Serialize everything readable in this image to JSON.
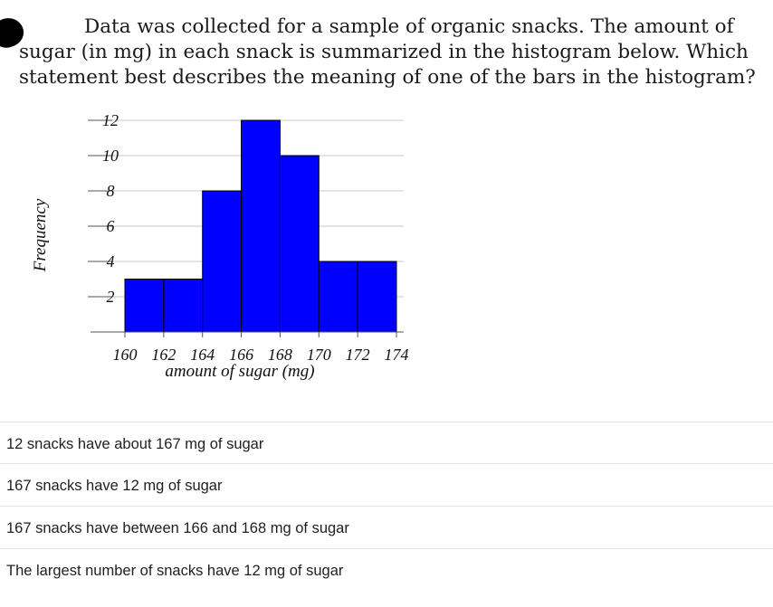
{
  "question": {
    "text": "Data was collected for a sample of organic snacks. The amount of sugar (in mg) in each snack is summarized in the histogram below. Which statement best describes the meaning of one of the bars in the histogram?"
  },
  "chart_data": {
    "type": "bar",
    "histogram": true,
    "bins": [
      [
        160,
        162
      ],
      [
        162,
        164
      ],
      [
        164,
        166
      ],
      [
        166,
        168
      ],
      [
        168,
        170
      ],
      [
        170,
        172
      ],
      [
        172,
        174
      ]
    ],
    "values": [
      3,
      3,
      8,
      12,
      10,
      4,
      4
    ],
    "x_ticks": [
      "160",
      "162",
      "164",
      "166",
      "168",
      "170",
      "172",
      "174"
    ],
    "y_ticks": [
      "2",
      "4",
      "6",
      "8",
      "10",
      "12"
    ],
    "xlabel": "amount of sugar (mg)",
    "ylabel": "Frequency",
    "xlim": [
      160,
      174
    ],
    "ylim": [
      0,
      12
    ],
    "grid": true,
    "bar_color": "#0000ff"
  },
  "options": [
    "12 snacks have about 167 mg of sugar",
    "167 snacks have 12 mg of sugar",
    "167 snacks have between 166 and 168 mg of sugar",
    "The largest number of snacks have 12 mg of sugar"
  ]
}
